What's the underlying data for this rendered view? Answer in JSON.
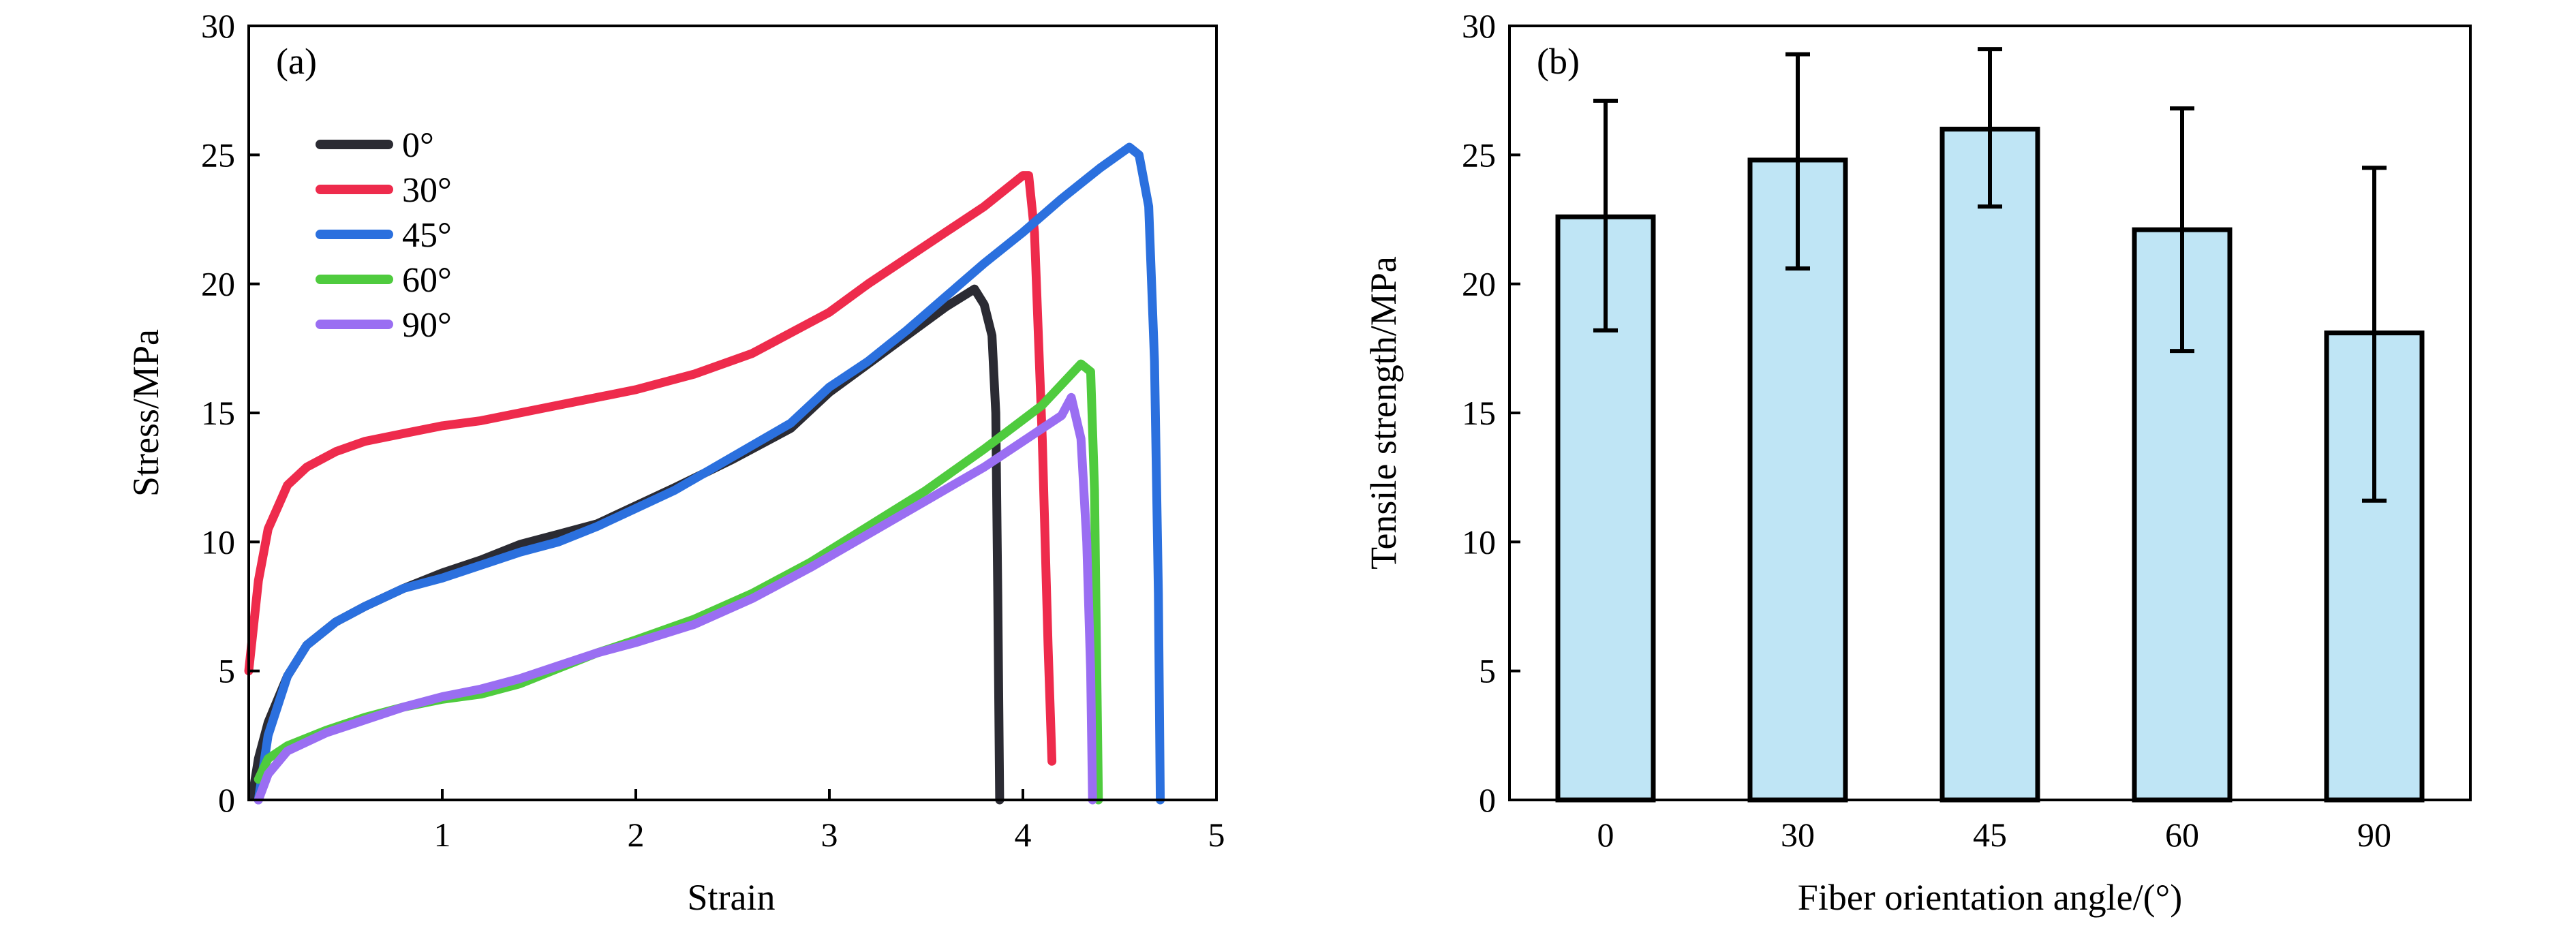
{
  "chart_data": [
    {
      "panel": "(a)",
      "type": "line",
      "title": "",
      "xlabel": "Strain",
      "ylabel": "Stress/MPa",
      "xlim": [
        0,
        5
      ],
      "ylim": [
        0,
        30
      ],
      "xticks": [
        1,
        2,
        3,
        4,
        5
      ],
      "yticks": [
        0,
        5,
        10,
        15,
        20,
        25,
        30
      ],
      "legend_position": "top-left",
      "series": [
        {
          "name": "0°",
          "color": "#2b2b33",
          "points": [
            [
              0.02,
              0.2
            ],
            [
              0.05,
              1.6
            ],
            [
              0.1,
              3.0
            ],
            [
              0.2,
              4.8
            ],
            [
              0.3,
              6.0
            ],
            [
              0.45,
              6.9
            ],
            [
              0.6,
              7.5
            ],
            [
              0.8,
              8.2
            ],
            [
              1.0,
              8.8
            ],
            [
              1.2,
              9.3
            ],
            [
              1.4,
              9.9
            ],
            [
              1.6,
              10.3
            ],
            [
              1.8,
              10.7
            ],
            [
              2.0,
              11.4
            ],
            [
              2.2,
              12.1
            ],
            [
              2.5,
              13.2
            ],
            [
              2.8,
              14.4
            ],
            [
              3.0,
              15.8
            ],
            [
              3.2,
              16.9
            ],
            [
              3.4,
              18.0
            ],
            [
              3.6,
              19.1
            ],
            [
              3.75,
              19.8
            ],
            [
              3.8,
              19.2
            ],
            [
              3.84,
              18.0
            ],
            [
              3.86,
              15.0
            ],
            [
              3.87,
              8.0
            ],
            [
              3.88,
              0.0
            ]
          ]
        },
        {
          "name": "30°",
          "color": "#ee2b4c",
          "points": [
            [
              0.0,
              5.0
            ],
            [
              0.05,
              8.5
            ],
            [
              0.1,
              10.5
            ],
            [
              0.2,
              12.2
            ],
            [
              0.3,
              12.9
            ],
            [
              0.45,
              13.5
            ],
            [
              0.6,
              13.9
            ],
            [
              0.8,
              14.2
            ],
            [
              1.0,
              14.5
            ],
            [
              1.2,
              14.7
            ],
            [
              1.4,
              15.0
            ],
            [
              1.6,
              15.3
            ],
            [
              1.8,
              15.6
            ],
            [
              2.0,
              15.9
            ],
            [
              2.3,
              16.5
            ],
            [
              2.6,
              17.3
            ],
            [
              3.0,
              18.9
            ],
            [
              3.2,
              20.0
            ],
            [
              3.4,
              21.0
            ],
            [
              3.6,
              22.0
            ],
            [
              3.8,
              23.0
            ],
            [
              4.0,
              24.2
            ],
            [
              4.03,
              24.2
            ],
            [
              4.06,
              22.0
            ],
            [
              4.1,
              14.0
            ],
            [
              4.13,
              6.0
            ],
            [
              4.15,
              1.5
            ]
          ]
        },
        {
          "name": "45°",
          "color": "#2b70de",
          "points": [
            [
              0.05,
              0.0
            ],
            [
              0.1,
              2.5
            ],
            [
              0.2,
              4.8
            ],
            [
              0.3,
              6.0
            ],
            [
              0.45,
              6.9
            ],
            [
              0.6,
              7.5
            ],
            [
              0.8,
              8.2
            ],
            [
              1.0,
              8.6
            ],
            [
              1.2,
              9.1
            ],
            [
              1.4,
              9.6
            ],
            [
              1.6,
              10.0
            ],
            [
              1.8,
              10.6
            ],
            [
              2.0,
              11.3
            ],
            [
              2.2,
              12.0
            ],
            [
              2.5,
              13.3
            ],
            [
              2.8,
              14.6
            ],
            [
              3.0,
              16.0
            ],
            [
              3.2,
              17.0
            ],
            [
              3.4,
              18.2
            ],
            [
              3.6,
              19.5
            ],
            [
              3.8,
              20.8
            ],
            [
              4.0,
              22.0
            ],
            [
              4.2,
              23.3
            ],
            [
              4.4,
              24.5
            ],
            [
              4.55,
              25.3
            ],
            [
              4.6,
              25.0
            ],
            [
              4.65,
              23.0
            ],
            [
              4.68,
              17.0
            ],
            [
              4.7,
              8.0
            ],
            [
              4.71,
              0.0
            ]
          ]
        },
        {
          "name": "60°",
          "color": "#4fcb3e",
          "points": [
            [
              0.05,
              0.8
            ],
            [
              0.1,
              1.6
            ],
            [
              0.2,
              2.1
            ],
            [
              0.4,
              2.7
            ],
            [
              0.6,
              3.2
            ],
            [
              0.8,
              3.6
            ],
            [
              1.0,
              3.9
            ],
            [
              1.2,
              4.1
            ],
            [
              1.4,
              4.5
            ],
            [
              1.6,
              5.1
            ],
            [
              1.8,
              5.7
            ],
            [
              2.0,
              6.2
            ],
            [
              2.3,
              7.0
            ],
            [
              2.6,
              8.0
            ],
            [
              2.9,
              9.2
            ],
            [
              3.2,
              10.6
            ],
            [
              3.5,
              12.0
            ],
            [
              3.8,
              13.6
            ],
            [
              4.1,
              15.3
            ],
            [
              4.3,
              16.9
            ],
            [
              4.35,
              16.6
            ],
            [
              4.37,
              12.0
            ],
            [
              4.38,
              6.0
            ],
            [
              4.39,
              0.0
            ]
          ]
        },
        {
          "name": "90°",
          "color": "#9a6ef2",
          "points": [
            [
              0.05,
              0.0
            ],
            [
              0.1,
              1.0
            ],
            [
              0.2,
              1.9
            ],
            [
              0.4,
              2.6
            ],
            [
              0.6,
              3.1
            ],
            [
              0.8,
              3.6
            ],
            [
              1.0,
              4.0
            ],
            [
              1.2,
              4.3
            ],
            [
              1.4,
              4.7
            ],
            [
              1.6,
              5.2
            ],
            [
              1.8,
              5.7
            ],
            [
              2.0,
              6.1
            ],
            [
              2.3,
              6.8
            ],
            [
              2.6,
              7.8
            ],
            [
              2.9,
              9.0
            ],
            [
              3.2,
              10.3
            ],
            [
              3.5,
              11.6
            ],
            [
              3.8,
              12.9
            ],
            [
              4.0,
              13.9
            ],
            [
              4.2,
              14.9
            ],
            [
              4.25,
              15.6
            ],
            [
              4.3,
              14.0
            ],
            [
              4.33,
              10.0
            ],
            [
              4.35,
              5.0
            ],
            [
              4.36,
              0.0
            ]
          ]
        }
      ]
    },
    {
      "panel": "(b)",
      "type": "bar",
      "title": "",
      "xlabel": "Fiber orientation angle/(°)",
      "ylabel": "Tensile strength/MPa",
      "categories": [
        "0",
        "30",
        "45",
        "60",
        "90"
      ],
      "values": [
        22.6,
        24.8,
        26.0,
        22.1,
        18.1
      ],
      "error_lower": [
        18.2,
        20.6,
        23.0,
        17.4,
        11.6
      ],
      "error_upper": [
        27.1,
        28.9,
        29.1,
        26.8,
        24.5
      ],
      "ylim": [
        0,
        30
      ],
      "yticks": [
        0,
        5,
        10,
        15,
        20,
        25,
        30
      ],
      "bar_color": "#bfe5f5"
    }
  ]
}
